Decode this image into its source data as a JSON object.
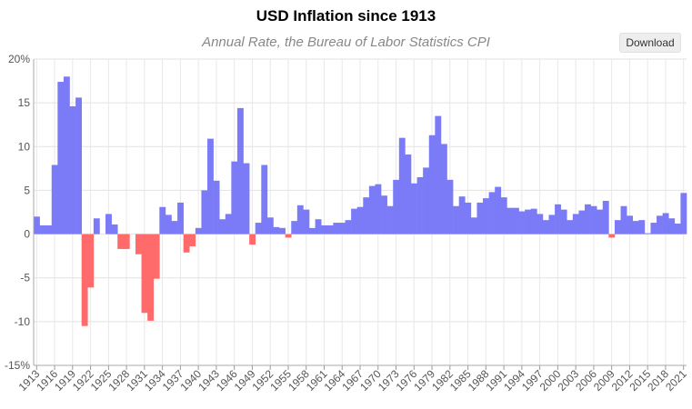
{
  "chart_data": {
    "type": "bar",
    "title": "USD Inflation since 1913",
    "subtitle": "Annual Rate, the Bureau of Labor Statistics CPI",
    "ylabel": "",
    "xlabel": "",
    "ylim": [
      -15,
      20
    ],
    "yticks": [
      -15,
      -10,
      -5,
      0,
      5,
      10,
      15,
      20
    ],
    "ytick_labels": [
      "-15%",
      "-10",
      "-5",
      "0",
      "5",
      "10",
      "15",
      "20%"
    ],
    "grid": true,
    "legend": "none",
    "x_start": 1913,
    "x_end": 2021,
    "x_tick_step": 3,
    "positive_color": "#7b7bf7",
    "negative_color": "#ff6a6a",
    "categories": [
      1913,
      1914,
      1915,
      1916,
      1917,
      1918,
      1919,
      1920,
      1921,
      1922,
      1923,
      1924,
      1925,
      1926,
      1927,
      1928,
      1929,
      1930,
      1931,
      1932,
      1933,
      1934,
      1935,
      1936,
      1937,
      1938,
      1939,
      1940,
      1941,
      1942,
      1943,
      1944,
      1945,
      1946,
      1947,
      1948,
      1949,
      1950,
      1951,
      1952,
      1953,
      1954,
      1955,
      1956,
      1957,
      1958,
      1959,
      1960,
      1961,
      1962,
      1963,
      1964,
      1965,
      1966,
      1967,
      1968,
      1969,
      1970,
      1971,
      1972,
      1973,
      1974,
      1975,
      1976,
      1977,
      1978,
      1979,
      1980,
      1981,
      1982,
      1983,
      1984,
      1985,
      1986,
      1987,
      1988,
      1989,
      1990,
      1991,
      1992,
      1993,
      1994,
      1995,
      1996,
      1997,
      1998,
      1999,
      2000,
      2001,
      2002,
      2003,
      2004,
      2005,
      2006,
      2007,
      2008,
      2009,
      2010,
      2011,
      2012,
      2013,
      2014,
      2015,
      2016,
      2017,
      2018,
      2019,
      2020,
      2021
    ],
    "values": [
      2.0,
      1.0,
      1.0,
      7.9,
      17.4,
      18.0,
      14.6,
      15.6,
      -10.5,
      -6.1,
      1.8,
      0.0,
      2.3,
      1.1,
      -1.7,
      -1.7,
      0.0,
      -2.3,
      -9.0,
      -9.9,
      -5.1,
      3.1,
      2.2,
      1.5,
      3.6,
      -2.1,
      -1.4,
      0.7,
      5.0,
      10.9,
      6.1,
      1.7,
      2.3,
      8.3,
      14.4,
      8.1,
      -1.2,
      1.3,
      7.9,
      1.9,
      0.8,
      0.7,
      -0.4,
      1.5,
      3.3,
      2.8,
      0.7,
      1.7,
      1.0,
      1.0,
      1.3,
      1.3,
      1.6,
      2.9,
      3.1,
      4.2,
      5.5,
      5.7,
      4.4,
      3.2,
      6.2,
      11.0,
      9.1,
      5.8,
      6.5,
      7.6,
      11.3,
      13.5,
      10.3,
      6.2,
      3.2,
      4.3,
      3.6,
      1.9,
      3.6,
      4.1,
      4.8,
      5.4,
      4.2,
      3.0,
      3.0,
      2.6,
      2.8,
      2.9,
      2.3,
      1.6,
      2.2,
      3.4,
      2.8,
      1.6,
      2.3,
      2.7,
      3.4,
      3.2,
      2.8,
      3.8,
      -0.4,
      1.6,
      3.2,
      2.1,
      1.5,
      1.6,
      0.1,
      1.3,
      2.1,
      2.4,
      1.8,
      1.2,
      4.7
    ]
  },
  "toolbar": {
    "download_label": "Download"
  }
}
